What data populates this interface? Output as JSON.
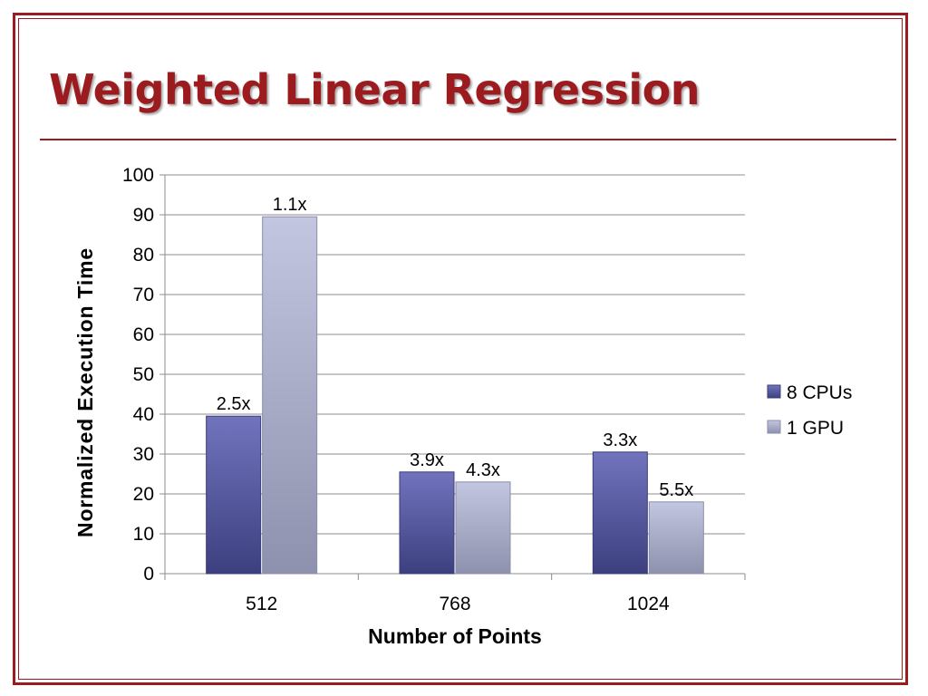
{
  "slide": {
    "title": "Weighted Linear Regression"
  },
  "colors": {
    "accent": "#9b1b1e",
    "series_cpu": "#5b5ea6",
    "series_gpu": "#aeb2cf",
    "gridline": "#8c8c8c"
  },
  "chart_data": {
    "type": "bar",
    "title": "",
    "xlabel": "Number of Points",
    "ylabel": "Normalized Execution Time",
    "categories": [
      "512",
      "768",
      "1024"
    ],
    "ylim": [
      0,
      100
    ],
    "yticks": [
      0,
      10,
      20,
      30,
      40,
      50,
      60,
      70,
      80,
      90,
      100
    ],
    "grid": true,
    "legend_position": "right",
    "series": [
      {
        "name": "8 CPUs",
        "values": [
          39.5,
          25.5,
          30.5
        ],
        "labels": [
          "2.5x",
          "3.9x",
          "3.3x"
        ],
        "color": "#5b5ea6"
      },
      {
        "name": "1 GPU",
        "values": [
          89.5,
          23,
          18
        ],
        "labels": [
          "1.1x",
          "4.3x",
          "5.5x"
        ],
        "color": "#aeb2cf"
      }
    ]
  }
}
